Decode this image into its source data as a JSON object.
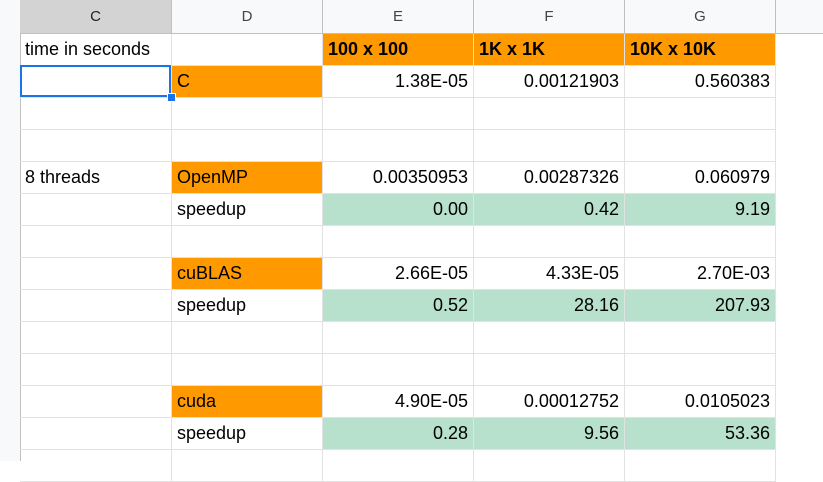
{
  "columns": [
    "C",
    "D",
    "E",
    "F",
    "G"
  ],
  "selected_column": "C",
  "colors": {
    "orange": "#ff9900",
    "green": "#b7e1cd",
    "selection": "#1a73e8"
  },
  "rows": [
    {
      "c": "time in seconds",
      "d": "",
      "e": "100 x 100",
      "f": "1K x 1K",
      "g": "10K x 10K"
    },
    {
      "c": "",
      "d": "C",
      "e": "1.38E-05",
      "f": "0.00121903",
      "g": "0.560383"
    },
    {
      "c": "",
      "d": "",
      "e": "",
      "f": "",
      "g": ""
    },
    {
      "c": "",
      "d": "",
      "e": "",
      "f": "",
      "g": ""
    },
    {
      "c": "8 threads",
      "d": "OpenMP",
      "e": "0.00350953",
      "f": "0.00287326",
      "g": "0.060979"
    },
    {
      "c": "",
      "d": "speedup",
      "e": "0.00",
      "f": "0.42",
      "g": "9.19"
    },
    {
      "c": "",
      "d": "",
      "e": "",
      "f": "",
      "g": ""
    },
    {
      "c": "",
      "d": "cuBLAS",
      "e": "2.66E-05",
      "f": "4.33E-05",
      "g": "2.70E-03"
    },
    {
      "c": "",
      "d": "speedup",
      "e": "0.52",
      "f": "28.16",
      "g": "207.93"
    },
    {
      "c": "",
      "d": "",
      "e": "",
      "f": "",
      "g": ""
    },
    {
      "c": "",
      "d": "",
      "e": "",
      "f": "",
      "g": ""
    },
    {
      "c": "",
      "d": "cuda",
      "e": "4.90E-05",
      "f": "0.00012752",
      "g": "0.0105023"
    },
    {
      "c": "",
      "d": "speedup",
      "e": "0.28",
      "f": "9.56",
      "g": "53.36"
    },
    {
      "c": "",
      "d": "",
      "e": "",
      "f": "",
      "g": ""
    }
  ]
}
